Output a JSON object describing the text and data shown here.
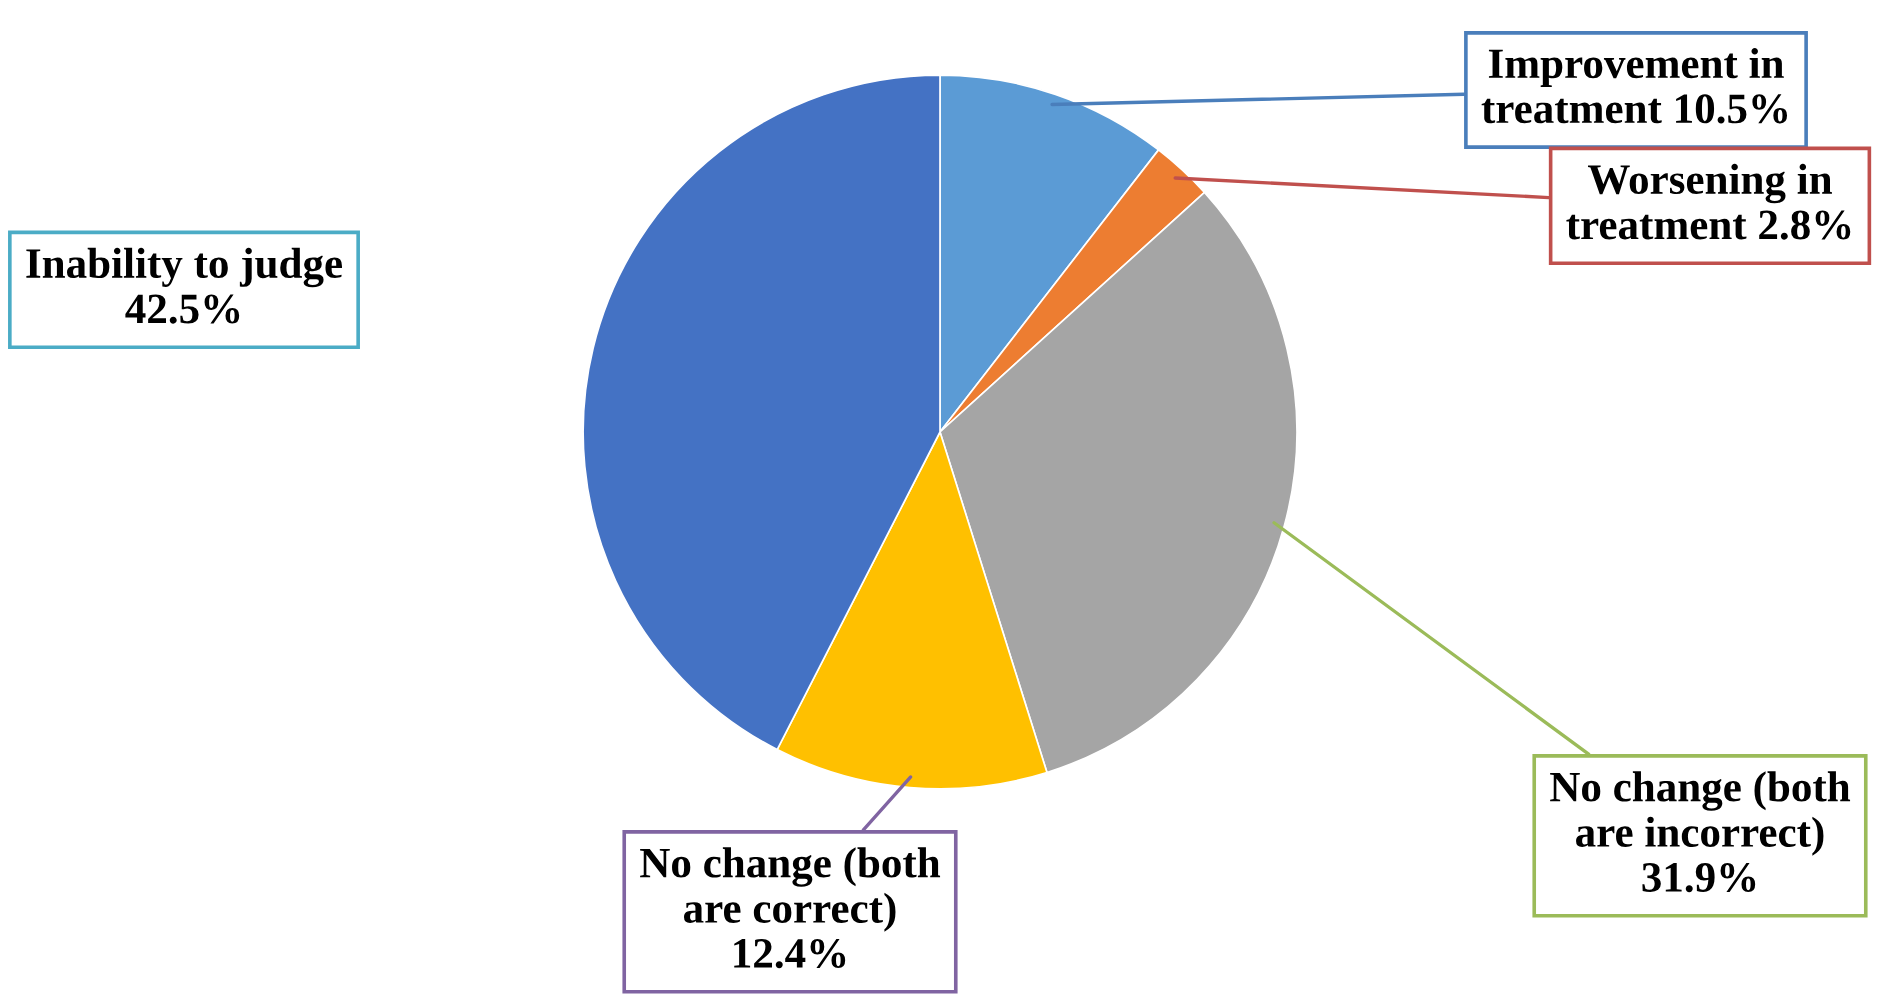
{
  "chart_data": {
    "type": "pie",
    "categories": [
      "Improvement in treatment",
      "Worsening in treatment",
      "No change (both are incorrect)",
      "No change (both are correct)",
      "Inability to judge"
    ],
    "values": [
      10.5,
      2.8,
      31.9,
      12.4,
      42.5
    ],
    "value_labels": [
      "10.5%",
      "2.8%",
      "31.9%",
      "12.4%",
      "42.5%"
    ],
    "colors": [
      "#5b9bd5",
      "#ed7d31",
      "#a5a5a5",
      "#ffc000",
      "#4472c4"
    ],
    "legend": false
  }
}
